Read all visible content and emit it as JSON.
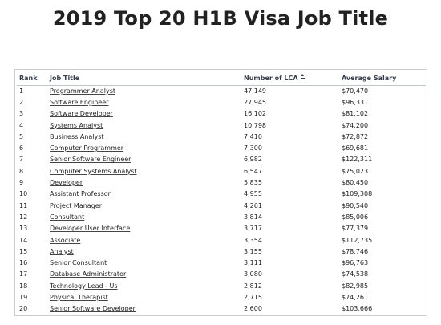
{
  "page": {
    "title": "2019 Top 20 H1B Visa Job Title"
  },
  "table": {
    "headers": {
      "rank": "Rank",
      "job_title": "Job Title",
      "lca": "Number of LCA",
      "salary": "Average Salary"
    },
    "sort_icon": "sort-icon",
    "rows": [
      {
        "rank": "1",
        "title": "Programmer Analyst",
        "lca": "47,149",
        "salary": "$70,470"
      },
      {
        "rank": "2",
        "title": "Software Engineer",
        "lca": "27,945",
        "salary": "$96,331"
      },
      {
        "rank": "3",
        "title": "Software Developer",
        "lca": "16,102",
        "salary": "$81,102"
      },
      {
        "rank": "4",
        "title": "Systems Analyst",
        "lca": "10,798",
        "salary": "$74,200"
      },
      {
        "rank": "5",
        "title": "Business Analyst",
        "lca": "7,410",
        "salary": "$72,872"
      },
      {
        "rank": "6",
        "title": "Computer Programmer",
        "lca": "7,300",
        "salary": "$69,681"
      },
      {
        "rank": "7",
        "title": "Senior Software Engineer",
        "lca": "6,982",
        "salary": "$122,311"
      },
      {
        "rank": "8",
        "title": "Computer Systems Analyst",
        "lca": "6,547",
        "salary": "$75,023"
      },
      {
        "rank": "9",
        "title": "Developer",
        "lca": "5,835",
        "salary": "$80,450"
      },
      {
        "rank": "10",
        "title": "Assistant Professor",
        "lca": "4,955",
        "salary": "$109,308"
      },
      {
        "rank": "11",
        "title": "Project Manager",
        "lca": "4,261",
        "salary": "$90,540"
      },
      {
        "rank": "12",
        "title": "Consultant",
        "lca": "3,814",
        "salary": "$85,006"
      },
      {
        "rank": "13",
        "title": "Developer User Interface",
        "lca": "3,717",
        "salary": "$77,379"
      },
      {
        "rank": "14",
        "title": "Associate",
        "lca": "3,354",
        "salary": "$112,735"
      },
      {
        "rank": "15",
        "title": "Analyst",
        "lca": "3,155",
        "salary": "$78,746"
      },
      {
        "rank": "16",
        "title": "Senior Consultant",
        "lca": "3,111",
        "salary": "$96,763"
      },
      {
        "rank": "17",
        "title": "Database Administrator",
        "lca": "3,080",
        "salary": "$74,538"
      },
      {
        "rank": "18",
        "title": "Technology Lead - Us",
        "lca": "2,812",
        "salary": "$82,985"
      },
      {
        "rank": "19",
        "title": "Physical Therapist",
        "lca": "2,715",
        "salary": "$74,261"
      },
      {
        "rank": "20",
        "title": "Senior Software Developer",
        "lca": "2,600",
        "salary": "$103,666"
      }
    ]
  }
}
